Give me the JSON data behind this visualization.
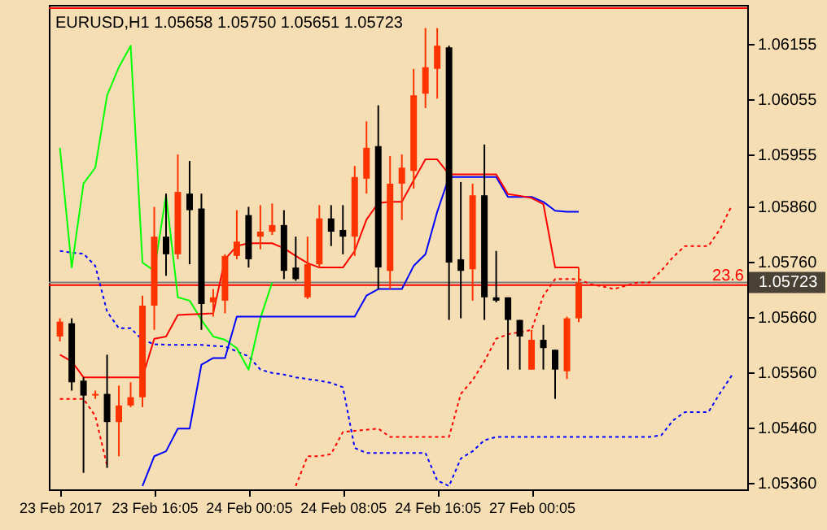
{
  "chart_data": {
    "type": "candlestick",
    "title": "EURUSD,H1  1.05658 1.05750 1.05651 1.05723",
    "categories": [
      "23 Feb 2017",
      null,
      null,
      null,
      null,
      null,
      null,
      null,
      "23 Feb 16:05",
      null,
      null,
      null,
      null,
      null,
      null,
      null,
      "24 Feb 00:05",
      null,
      null,
      null,
      null,
      null,
      null,
      null,
      "24 Feb 08:05",
      null,
      null,
      null,
      null,
      null,
      null,
      null,
      "24 Feb 16:05",
      null,
      null,
      null,
      null,
      null,
      null,
      null,
      "27 Feb 00:05",
      null,
      null,
      null,
      null,
      null,
      null,
      null,
      null,
      null,
      null,
      null,
      null,
      null,
      null,
      null,
      null,
      null
    ],
    "ohlc": [
      [
        1.05625,
        1.05658,
        1.05616,
        1.05652
      ],
      [
        1.05649,
        1.05658,
        1.05527,
        1.05542
      ],
      [
        1.05545,
        1.05551,
        1.05378,
        1.05518
      ],
      [
        1.05518,
        1.05527,
        1.05512,
        1.05521
      ],
      [
        1.05521,
        1.05592,
        1.05387,
        1.0547
      ],
      [
        1.0547,
        1.05536,
        1.05408,
        1.055
      ],
      [
        1.055,
        1.05542,
        1.05497,
        1.05515
      ],
      [
        1.05515,
        1.05699,
        1.05497,
        1.05681
      ],
      [
        1.05681,
        1.0586,
        1.05637,
        1.05806
      ],
      [
        1.05806,
        1.05884,
        1.05735,
        1.05774
      ],
      [
        1.05774,
        1.05955,
        1.05765,
        1.05887
      ],
      [
        1.05884,
        1.05943,
        1.05756,
        1.05854
      ],
      [
        1.05857,
        1.05884,
        1.05637,
        1.05684
      ],
      [
        1.05687,
        1.05711,
        1.05661,
        1.05696
      ],
      [
        1.0569,
        1.05774,
        1.05667,
        1.05771
      ],
      [
        1.05771,
        1.05854,
        1.05765,
        1.05797
      ],
      [
        1.05845,
        1.0586,
        1.0575,
        1.05765
      ],
      [
        1.05806,
        1.05863,
        1.05783,
        1.05815
      ],
      [
        1.05815,
        1.05866,
        1.05809,
        1.05827
      ],
      [
        1.05827,
        1.05854,
        1.05729,
        1.05744
      ],
      [
        1.0575,
        1.05806,
        1.05726,
        1.05729
      ],
      [
        1.05696,
        1.05806,
        1.05693,
        1.05756
      ],
      [
        1.05756,
        1.05863,
        1.0575,
        1.05839
      ],
      [
        1.05839,
        1.05863,
        1.05789,
        1.05815
      ],
      [
        1.05818,
        1.05863,
        1.05774,
        1.05806
      ],
      [
        1.05806,
        1.05934,
        1.05771,
        1.05914
      ],
      [
        1.05911,
        1.06015,
        1.05884,
        1.05967
      ],
      [
        1.0597,
        1.06044,
        1.05711,
        1.0575
      ],
      [
        1.05744,
        1.05952,
        1.05711,
        1.05902
      ],
      [
        1.05902,
        1.05955,
        1.05836,
        1.05931
      ],
      [
        1.05925,
        1.0611,
        1.05893,
        1.06062
      ],
      [
        1.06065,
        1.06184,
        1.06039,
        1.06113
      ],
      [
        1.0611,
        1.06184,
        1.06056,
        1.06152
      ],
      [
        1.06149,
        1.06152,
        1.05655,
        1.05759
      ],
      [
        1.05765,
        1.05905,
        1.05658,
        1.05744
      ],
      [
        1.05747,
        1.05902,
        1.0569,
        1.05881
      ],
      [
        1.05881,
        1.05973,
        1.05655,
        1.05696
      ],
      [
        1.05696,
        1.0578,
        1.05687,
        1.0569
      ],
      [
        1.05696,
        1.05696,
        1.05565,
        1.05655
      ],
      [
        1.05655,
        1.05655,
        1.05565,
        1.05625
      ],
      [
        1.05565,
        1.05637,
        1.05565,
        1.05619
      ],
      [
        1.05619,
        1.05646,
        1.05565,
        1.05604
      ],
      [
        1.05601,
        1.05601,
        1.05512,
        1.05565
      ],
      [
        1.05562,
        1.05661,
        1.05548,
        1.05658
      ],
      [
        1.05658,
        1.0575,
        1.05651,
        1.05723
      ],
      null,
      null,
      null,
      null,
      null,
      null,
      null,
      null,
      null,
      null,
      null,
      null,
      null
    ],
    "colors": [
      "#ff3300",
      "#000000",
      "#000000",
      "#ff3300",
      "#000000",
      "#ff3300",
      "#ff3300",
      "#ff3300",
      "#ff3300",
      "#000000",
      "#ff3300",
      "#000000",
      "#000000",
      "#ff3300",
      "#ff3300",
      "#ff3300",
      "#000000",
      "#ff3300",
      "#ff3300",
      "#000000",
      "#000000",
      "#ff3300",
      "#ff3300",
      "#000000",
      "#000000",
      "#ff3300",
      "#ff3300",
      "#000000",
      "#ff3300",
      "#ff3300",
      "#ff3300",
      "#ff3300",
      "#ff3300",
      "#000000",
      "#000000",
      "#ff3300",
      "#000000",
      "#000000",
      "#000000",
      "#000000",
      "#ff3300",
      "#000000",
      "#000000",
      "#ff3300",
      "#ff3300",
      null,
      null,
      null,
      null,
      null,
      null,
      null,
      null,
      null,
      null,
      null,
      null,
      null
    ],
    "series": [
      {
        "type": "line",
        "color": "#ff0000",
        "line_style": "dotted",
        "values": [
          1.05512,
          1.05512,
          1.05512,
          1.05481,
          1.05391,
          null,
          null,
          null,
          null,
          null,
          null,
          null,
          null,
          null,
          null,
          null,
          null,
          null,
          null,
          null,
          1.05354,
          1.05408,
          1.05408,
          1.05412,
          1.05452,
          1.05454,
          1.05456,
          1.05458,
          1.05443,
          1.05443,
          1.05443,
          1.05443,
          1.05443,
          1.05443,
          1.05521,
          1.05546,
          1.0558,
          1.05621,
          1.05629,
          1.05633,
          1.05637,
          1.05699,
          1.05729,
          1.05729,
          1.05729,
          1.0572,
          1.05716,
          1.05711,
          1.05717,
          1.05723,
          1.05723,
          1.05744,
          1.05769,
          1.05789,
          1.05789,
          1.05789,
          1.0582,
          1.05863
        ]
      },
      {
        "type": "line",
        "color": "#0000ff",
        "line_style": "dotted",
        "values": [
          1.0578,
          1.05777,
          1.05775,
          1.05753,
          1.0567,
          1.0564,
          1.0564,
          1.05619,
          1.05611,
          1.0561,
          1.0561,
          1.0561,
          1.0561,
          1.05608,
          1.05607,
          1.05598,
          1.05589,
          1.05565,
          1.05559,
          1.05556,
          1.05551,
          1.05548,
          1.05545,
          1.05541,
          1.05533,
          1.05423,
          1.05414,
          1.05414,
          1.05414,
          1.05414,
          1.05414,
          1.05414,
          1.05364,
          1.05354,
          1.05404,
          1.05417,
          1.05437,
          1.05443,
          1.05443,
          1.05443,
          1.05443,
          1.05443,
          1.05443,
          1.05443,
          1.05443,
          1.05443,
          1.05443,
          1.05443,
          1.05443,
          1.05443,
          1.05443,
          1.05446,
          1.05473,
          1.05488,
          1.05488,
          1.05488,
          1.05523,
          1.05555
        ]
      },
      {
        "type": "line",
        "color": "#00ff00",
        "line_style": "solid",
        "values": [
          1.05967,
          1.0575,
          1.05902,
          1.05931,
          1.06062,
          1.06113,
          1.06152,
          1.05759,
          1.05744,
          1.05881,
          1.05696,
          1.0569,
          1.05655,
          1.05625,
          1.05619,
          1.05604,
          1.05565,
          1.05658,
          1.05723,
          null,
          null,
          null,
          null,
          null,
          null,
          null,
          null,
          null,
          null,
          null,
          null,
          null,
          null,
          null,
          null,
          null,
          null,
          null,
          null,
          null,
          null,
          null,
          null,
          null,
          null,
          null,
          null,
          null,
          null,
          null,
          null,
          null,
          null,
          null,
          null,
          null,
          null,
          null
        ]
      },
      {
        "type": "line",
        "color": "#0000ff",
        "line_style": "solid",
        "values": [
          null,
          null,
          null,
          null,
          null,
          null,
          null,
          1.05354,
          1.05408,
          1.05417,
          1.05458,
          1.05458,
          1.05574,
          1.05586,
          1.05586,
          1.05661,
          1.05661,
          1.05661,
          1.05661,
          1.05661,
          1.05661,
          1.05661,
          1.05661,
          1.05661,
          1.05661,
          1.05661,
          1.05699,
          1.05711,
          1.05711,
          1.05711,
          1.05753,
          1.05774,
          1.05851,
          1.05914,
          1.05914,
          1.05914,
          1.05914,
          1.05914,
          1.05878,
          1.05878,
          1.05878,
          1.05869,
          1.05853,
          1.05851,
          1.05851,
          null,
          null,
          null,
          null,
          null,
          null,
          null,
          null,
          null,
          null,
          null,
          null,
          null
        ]
      },
      {
        "type": "line",
        "color": "#ff0000",
        "line_style": "solid",
        "values": [
          1.05592,
          1.0558,
          1.05551,
          1.05551,
          1.05551,
          1.05551,
          1.05551,
          1.05551,
          1.05621,
          1.05625,
          1.05664,
          1.05665,
          1.05666,
          1.05667,
          1.05765,
          1.05789,
          1.05794,
          1.05794,
          1.05794,
          1.05785,
          1.05771,
          1.05758,
          1.0575,
          1.0575,
          1.0575,
          1.0578,
          1.05837,
          1.05867,
          1.05869,
          1.05869,
          1.05908,
          1.05946,
          1.05946,
          1.05919,
          1.05919,
          1.05919,
          1.05919,
          1.05919,
          1.05883,
          1.0588,
          1.05876,
          1.05865,
          1.0575,
          1.0575,
          1.0575,
          null,
          null,
          null,
          null,
          null,
          null,
          null,
          null,
          null,
          null,
          null,
          null,
          null
        ]
      }
    ],
    "ref_lines": [
      {
        "axis": "y",
        "value": 1.05723,
        "label": "1.05723",
        "color": "#808080"
      },
      {
        "axis": "y",
        "value": 1.05718,
        "color": "#ff0000"
      },
      {
        "axis": "y",
        "value": 1.0622,
        "color": "#ff0000"
      }
    ],
    "annotations": [
      {
        "text": "23.6",
        "y": 1.05718
      }
    ],
    "ylim": [
      1.05348,
      1.06226
    ],
    "yticks": [
      {
        "value": 1.0536,
        "label": "1.05360"
      },
      {
        "value": 1.0546,
        "label": "1.05460"
      },
      {
        "value": 1.0556,
        "label": "1.05560"
      },
      {
        "value": 1.0566,
        "label": "1.05660"
      },
      {
        "value": 1.0576,
        "label": "1.05760"
      },
      {
        "value": 1.0586,
        "label": "1.05860"
      },
      {
        "value": 1.05955,
        "label": "1.05955"
      },
      {
        "value": 1.06055,
        "label": "1.06055"
      },
      {
        "value": 1.06155,
        "label": "1.06155"
      }
    ]
  }
}
